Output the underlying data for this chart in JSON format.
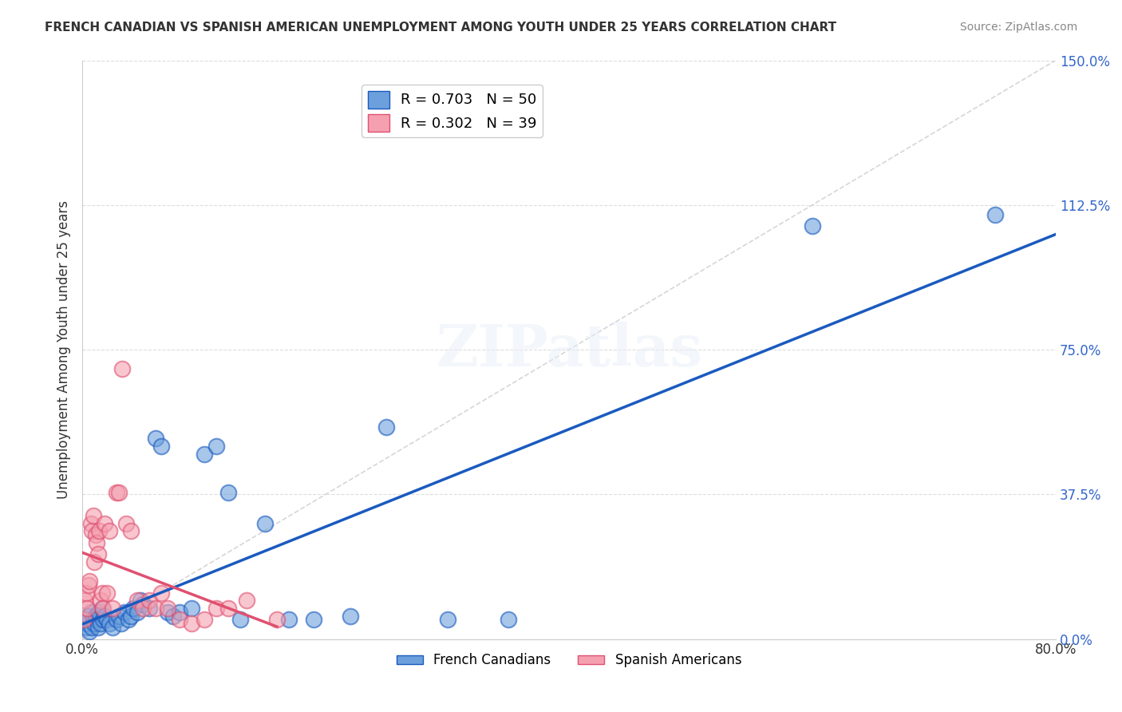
{
  "title": "FRENCH CANADIAN VS SPANISH AMERICAN UNEMPLOYMENT AMONG YOUTH UNDER 25 YEARS CORRELATION CHART",
  "source": "Source: ZipAtlas.com",
  "xlabel": "",
  "ylabel": "Unemployment Among Youth under 25 years",
  "watermark": "ZIPatlas",
  "legend_labels": [
    "French Canadians",
    "Spanish Americans"
  ],
  "blue_R": "R = 0.703",
  "blue_N": "N = 50",
  "pink_R": "R = 0.302",
  "pink_N": "N = 39",
  "xlim": [
    0.0,
    0.8
  ],
  "ylim": [
    0.0,
    1.5
  ],
  "xticks": [
    0.0,
    0.1,
    0.2,
    0.3,
    0.4,
    0.5,
    0.6,
    0.7,
    0.8
  ],
  "xticklabels": [
    "0.0%",
    "",
    "",
    "",
    "",
    "",
    "",
    "",
    "80.0%"
  ],
  "ytick_positions": [
    0.0,
    0.375,
    0.75,
    1.125,
    1.5
  ],
  "yticklabels": [
    "0.0%",
    "37.5%",
    "75.0%",
    "112.5%",
    "150.0%"
  ],
  "blue_color": "#6ca0dc",
  "pink_color": "#f4a0b0",
  "blue_line_color": "#1a5abf",
  "pink_line_color": "#e05070",
  "ref_line_color": "#cccccc",
  "background": "#ffffff",
  "grid_color": "#dddddd",
  "blue_points_x": [
    0.002,
    0.003,
    0.004,
    0.005,
    0.006,
    0.007,
    0.008,
    0.009,
    0.01,
    0.011,
    0.012,
    0.013,
    0.014,
    0.015,
    0.016,
    0.017,
    0.018,
    0.02,
    0.022,
    0.025,
    0.028,
    0.03,
    0.032,
    0.035,
    0.038,
    0.04,
    0.042,
    0.045,
    0.048,
    0.05,
    0.055,
    0.06,
    0.065,
    0.07,
    0.075,
    0.08,
    0.09,
    0.1,
    0.11,
    0.12,
    0.13,
    0.15,
    0.17,
    0.19,
    0.22,
    0.25,
    0.3,
    0.35,
    0.6,
    0.75
  ],
  "blue_points_y": [
    0.05,
    0.03,
    0.04,
    0.06,
    0.02,
    0.07,
    0.03,
    0.05,
    0.04,
    0.06,
    0.05,
    0.03,
    0.07,
    0.04,
    0.08,
    0.05,
    0.06,
    0.05,
    0.04,
    0.03,
    0.05,
    0.06,
    0.04,
    0.07,
    0.05,
    0.06,
    0.08,
    0.07,
    0.1,
    0.09,
    0.08,
    0.52,
    0.5,
    0.07,
    0.06,
    0.07,
    0.08,
    0.48,
    0.5,
    0.38,
    0.05,
    0.3,
    0.05,
    0.05,
    0.06,
    0.55,
    0.05,
    0.05,
    1.07,
    1.1
  ],
  "pink_points_x": [
    0.001,
    0.002,
    0.003,
    0.004,
    0.005,
    0.006,
    0.007,
    0.008,
    0.009,
    0.01,
    0.011,
    0.012,
    0.013,
    0.014,
    0.015,
    0.016,
    0.017,
    0.018,
    0.02,
    0.022,
    0.025,
    0.028,
    0.03,
    0.033,
    0.036,
    0.04,
    0.045,
    0.05,
    0.055,
    0.06,
    0.065,
    0.07,
    0.08,
    0.09,
    0.1,
    0.11,
    0.12,
    0.135,
    0.16
  ],
  "pink_points_y": [
    0.05,
    0.1,
    0.12,
    0.08,
    0.14,
    0.15,
    0.3,
    0.28,
    0.32,
    0.2,
    0.27,
    0.25,
    0.22,
    0.28,
    0.1,
    0.12,
    0.08,
    0.3,
    0.12,
    0.28,
    0.08,
    0.38,
    0.38,
    0.7,
    0.3,
    0.28,
    0.1,
    0.08,
    0.1,
    0.08,
    0.12,
    0.08,
    0.05,
    0.04,
    0.05,
    0.08,
    0.08,
    0.1,
    0.05
  ]
}
